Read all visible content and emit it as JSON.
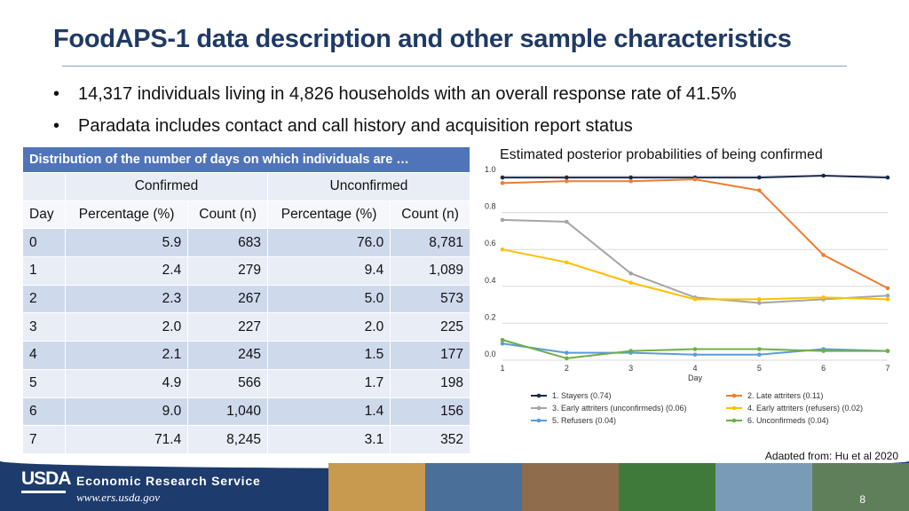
{
  "title": "FoodAPS-1 data description and other sample characteristics",
  "bullets": [
    "14,317 individuals living in 4,826 households with an overall response rate of 41.5%",
    "Paradata includes contact and call history and acquisition report status"
  ],
  "table": {
    "caption": "Distribution of the number of days on which individuals are …",
    "group_headers": [
      "Confirmed",
      "Unconfirmed"
    ],
    "column_headers": [
      "Day",
      "Percentage (%)",
      "Count (n)",
      "Percentage (%)",
      "Count (n)"
    ],
    "rows": [
      [
        "0",
        "5.9",
        "683",
        "76.0",
        "8,781"
      ],
      [
        "1",
        "2.4",
        "279",
        "9.4",
        "1,089"
      ],
      [
        "2",
        "2.3",
        "267",
        "5.0",
        "573"
      ],
      [
        "3",
        "2.0",
        "227",
        "2.0",
        "225"
      ],
      [
        "4",
        "2.1",
        "245",
        "1.5",
        "177"
      ],
      [
        "5",
        "4.9",
        "566",
        "1.7",
        "198"
      ],
      [
        "6",
        "9.0",
        "1,040",
        "1.4",
        "156"
      ],
      [
        "7",
        "71.4",
        "8,245",
        "3.1",
        "352"
      ]
    ]
  },
  "chart_data": {
    "type": "line",
    "title": "Estimated posterior probabilities of being confirmed",
    "xlabel": "Day",
    "ylabel": "",
    "x": [
      1,
      2,
      3,
      4,
      5,
      6,
      7
    ],
    "xlim": [
      1,
      7
    ],
    "ylim": [
      0,
      1.0
    ],
    "yticks": [
      "0.0",
      "0.2",
      "0.4",
      "0.6",
      "0.8",
      "1.0"
    ],
    "grid": true,
    "legend": "bottom",
    "series": [
      {
        "name": "1. Stayers (0.74)",
        "color": "#1a2a4a",
        "values": [
          0.99,
          0.99,
          0.99,
          0.99,
          0.99,
          1.0,
          0.99
        ]
      },
      {
        "name": "2. Late attriters (0.11)",
        "color": "#ed7d31",
        "values": [
          0.96,
          0.97,
          0.97,
          0.98,
          0.92,
          0.57,
          0.39
        ]
      },
      {
        "name": "3. Early attriters (unconfirmeds) (0.06)",
        "color": "#a5a5a5",
        "values": [
          0.76,
          0.75,
          0.47,
          0.34,
          0.31,
          0.33,
          0.35
        ]
      },
      {
        "name": "4. Early attriters (refusers) (0.02)",
        "color": "#ffc000",
        "values": [
          0.6,
          0.53,
          0.42,
          0.33,
          0.33,
          0.34,
          0.33
        ]
      },
      {
        "name": "5. Refusers (0.04)",
        "color": "#5b9bd5",
        "values": [
          0.09,
          0.04,
          0.04,
          0.03,
          0.03,
          0.06,
          0.05
        ]
      },
      {
        "name": "6. Unconfirmeds (0.04)",
        "color": "#70ad47",
        "values": [
          0.11,
          0.01,
          0.05,
          0.06,
          0.06,
          0.05,
          0.05
        ]
      }
    ]
  },
  "credit": "Adapted from: Hu et al 2020",
  "footer": {
    "logo_text": "USDA",
    "agency": "Economic Research Service",
    "url": "www.ers.usda.gov",
    "page_number": "8",
    "photo_colors": [
      "#c79a4f",
      "#4a6f98",
      "#8f6d4c",
      "#3f7a3a",
      "#7a9bb8",
      "#5f7f5a"
    ]
  }
}
